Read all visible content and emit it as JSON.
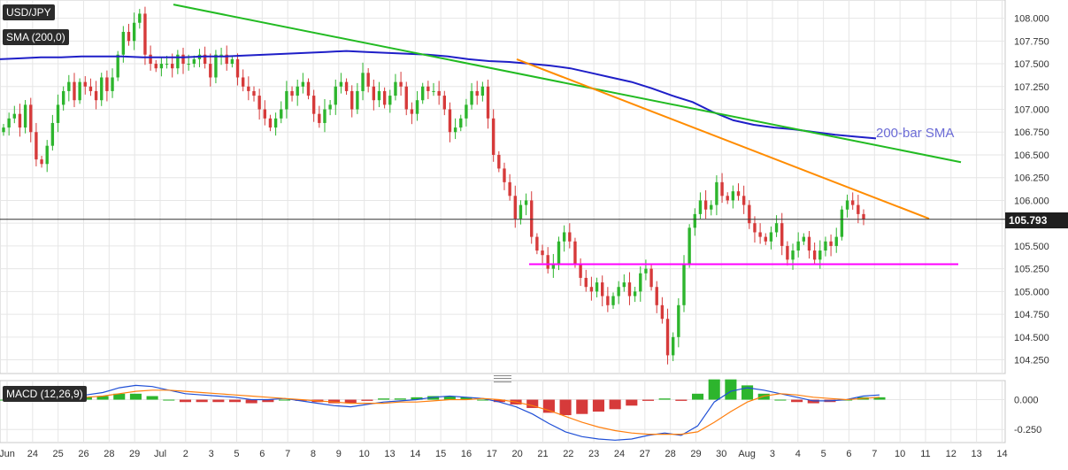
{
  "chart_data": [
    {
      "type": "candlestick",
      "symbol": "USD/JPY",
      "indicator_label": "SMA (200,0)",
      "current_price": "105.793",
      "yticks": [
        "104.250",
        "104.500",
        "104.750",
        "105.000",
        "105.250",
        "105.500",
        "105.750",
        "106.000",
        "106.250",
        "106.500",
        "106.750",
        "107.000",
        "107.250",
        "107.500",
        "107.750",
        "108.000"
      ],
      "ylim": [
        104.1,
        108.2
      ],
      "xticks": [
        "Jun",
        "24",
        "25",
        "26",
        "28",
        "29",
        "Jul",
        "2",
        "3",
        "5",
        "6",
        "7",
        "8",
        "9",
        "10",
        "13",
        "14",
        "15",
        "16",
        "17",
        "20",
        "21",
        "22",
        "23",
        "24",
        "27",
        "28",
        "29",
        "30",
        "Aug",
        "3",
        "4",
        "5",
        "6",
        "7",
        "10",
        "11",
        "12",
        "13",
        "14"
      ],
      "annotation": "200-bar SMA",
      "grid": true,
      "close_series": [
        106.8,
        106.9,
        106.95,
        106.8,
        107.05,
        106.75,
        106.45,
        106.4,
        106.6,
        106.85,
        107.05,
        107.2,
        107.3,
        107.1,
        107.3,
        107.25,
        107.2,
        107.1,
        107.35,
        107.2,
        107.35,
        107.6,
        107.85,
        107.75,
        107.95,
        108.05,
        107.6,
        107.5,
        107.45,
        107.5,
        107.5,
        107.45,
        107.6,
        107.5,
        107.5,
        107.55,
        107.6,
        107.5,
        107.35,
        107.6,
        107.6,
        107.5,
        107.55,
        107.35,
        107.25,
        107.2,
        107.15,
        107.0,
        106.9,
        106.8,
        106.9,
        107.0,
        107.2,
        107.15,
        107.25,
        107.3,
        107.15,
        106.95,
        106.85,
        107.0,
        107.05,
        107.25,
        107.3,
        107.2,
        107.0,
        107.2,
        107.4,
        107.25,
        107.1,
        107.2,
        107.05,
        107.15,
        107.3,
        107.25,
        107.0,
        106.95,
        107.1,
        107.25,
        107.2,
        107.2,
        107.15,
        107.0,
        106.75,
        106.8,
        106.9,
        107.05,
        107.2,
        107.15,
        107.25,
        106.9,
        106.5,
        106.35,
        106.2,
        106.05,
        105.8,
        105.95,
        106.0,
        105.6,
        105.45,
        105.4,
        105.25,
        105.3,
        105.55,
        105.65,
        105.55,
        105.3,
        105.15,
        105.05,
        105.0,
        105.1,
        104.95,
        104.85,
        104.95,
        105.05,
        105.1,
        104.95,
        105.0,
        105.2,
        105.25,
        105.05,
        104.85,
        104.7,
        104.3,
        104.5,
        104.85,
        105.3,
        105.7,
        105.85,
        106.0,
        105.9,
        105.95,
        106.2,
        106.05,
        106.0,
        106.1,
        106.05,
        105.95,
        105.75,
        105.65,
        105.6,
        105.55,
        105.65,
        105.75,
        105.5,
        105.35,
        105.45,
        105.55,
        105.6,
        105.45,
        105.35,
        105.45,
        105.55,
        105.5,
        105.6,
        105.9,
        106.0,
        105.95,
        105.85,
        105.793
      ],
      "sma_200": [
        107.55,
        107.56,
        107.57,
        107.57,
        107.58,
        107.58,
        107.58,
        107.57,
        107.57,
        107.57,
        107.58,
        107.58,
        107.59,
        107.6,
        107.61,
        107.62,
        107.63,
        107.64,
        107.63,
        107.62,
        107.61,
        107.6,
        107.58,
        107.55,
        107.53,
        107.52,
        107.5,
        107.48,
        107.45,
        107.4,
        107.35,
        107.3,
        107.23,
        107.15,
        107.08,
        106.97,
        106.88,
        106.83,
        106.8,
        106.78,
        106.75,
        106.72,
        106.7,
        106.68
      ],
      "trendlines": [
        {
          "color": "#22bb22",
          "from": [
            0,
            108.15
          ],
          "to": [
            1,
            106.42
          ]
        },
        {
          "color": "#ff8c00",
          "from": [
            0,
            107.55
          ],
          "to": [
            1,
            105.8
          ]
        },
        {
          "color": "#ff00ff",
          "from": [
            0,
            105.3
          ],
          "to": [
            1,
            105.3
          ]
        }
      ]
    },
    {
      "type": "macd",
      "indicator_label": "MACD (12,26,9)",
      "yticks": [
        "0.000",
        "-0.250"
      ],
      "ylim": [
        -0.36,
        0.16
      ],
      "macd": [
        0.0,
        0.0,
        0.0,
        0.01,
        0.02,
        0.04,
        0.06,
        0.1,
        0.12,
        0.11,
        0.08,
        0.05,
        0.04,
        0.03,
        0.02,
        0.0,
        0.0,
        0.01,
        -0.01,
        -0.03,
        -0.05,
        -0.06,
        -0.04,
        -0.02,
        -0.01,
        0.0,
        0.02,
        0.03,
        0.02,
        0.01,
        -0.02,
        -0.06,
        -0.12,
        -0.2,
        -0.27,
        -0.31,
        -0.33,
        -0.34,
        -0.33,
        -0.3,
        -0.28,
        -0.3,
        -0.22,
        -0.02,
        0.07,
        0.1,
        0.08,
        0.05,
        0.02,
        -0.01,
        -0.01,
        0.0,
        0.03,
        0.04
      ],
      "signal": [
        0.0,
        0.0,
        0.0,
        0.0,
        0.01,
        0.02,
        0.03,
        0.05,
        0.07,
        0.08,
        0.08,
        0.07,
        0.06,
        0.05,
        0.04,
        0.03,
        0.02,
        0.01,
        0.0,
        -0.01,
        -0.02,
        -0.03,
        -0.03,
        -0.03,
        -0.02,
        -0.02,
        -0.01,
        0.0,
        0.0,
        0.01,
        0.0,
        -0.02,
        -0.05,
        -0.09,
        -0.14,
        -0.19,
        -0.23,
        -0.26,
        -0.28,
        -0.29,
        -0.29,
        -0.29,
        -0.27,
        -0.19,
        -0.1,
        -0.02,
        0.03,
        0.05,
        0.04,
        0.02,
        0.01,
        0.0,
        0.01,
        0.02
      ]
    }
  ],
  "colors": {
    "up": "#2db52d",
    "down": "#d63a3a",
    "sma": "#1f1fc8",
    "macd_line": "#1f4fd6",
    "signal_line": "#ff7f0e",
    "grid": "#e6e6e6"
  }
}
